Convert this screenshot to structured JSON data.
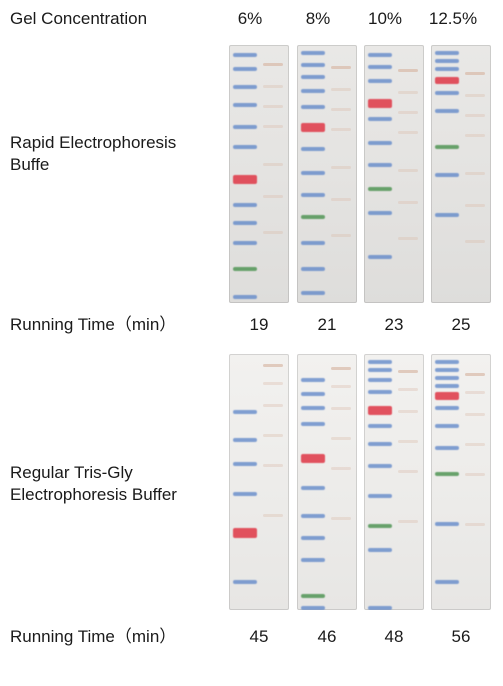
{
  "header": {
    "label": "Gel Concentration",
    "concentrations": [
      "6%",
      "8%",
      "10%",
      "12.5%"
    ]
  },
  "rows": [
    {
      "label": "Rapid Electrophoresis Buffe",
      "time_label": "Running  Time（min）",
      "times": [
        "19",
        "21",
        "23",
        "25"
      ]
    },
    {
      "label": "Regular Tris-Gly Electrophoresis Buffer",
      "time_label": "Running  Time（min）",
      "times": [
        "45",
        "46",
        "48",
        "56"
      ]
    }
  ],
  "colors": {
    "blue_band": "#5b84c8",
    "red_band": "#e0414f",
    "green_band": "#5a9a5e",
    "sample_band": "#d9b9a8"
  }
}
